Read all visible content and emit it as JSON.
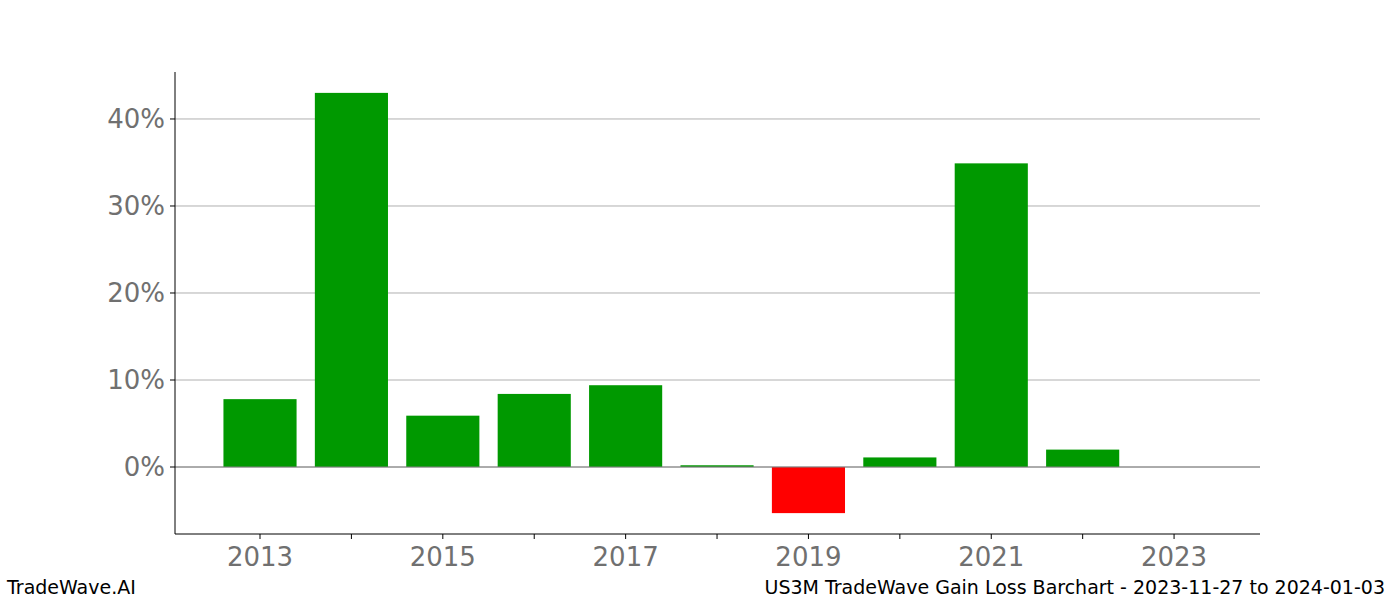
{
  "chart_data": {
    "type": "bar",
    "title": "US3M TradeWave Gain Loss Barchart - 2023-11-27 to 2024-01-03",
    "source": "TradeWave.AI",
    "categories": [
      "2013",
      null,
      "2015",
      null,
      "2017",
      null,
      "2019",
      null,
      "2021",
      null,
      "2023"
    ],
    "values": [
      7.8,
      43.0,
      5.9,
      8.4,
      9.4,
      0.2,
      -5.3,
      1.1,
      34.9,
      2.0,
      0
    ],
    "colors": [
      "#009900",
      "#009900",
      "#009900",
      "#009900",
      "#009900",
      "#009900",
      "#ff0000",
      "#009900",
      "#009900",
      "#009900",
      "#009900"
    ],
    "ylim": [
      -7.7,
      45.4
    ],
    "yticks": [
      {
        "value": 0,
        "label": "0%"
      },
      {
        "value": 10,
        "label": "10%"
      },
      {
        "value": 20,
        "label": "20%"
      },
      {
        "value": 30,
        "label": "30%"
      },
      {
        "value": 40,
        "label": "40%"
      }
    ],
    "grid": true
  }
}
